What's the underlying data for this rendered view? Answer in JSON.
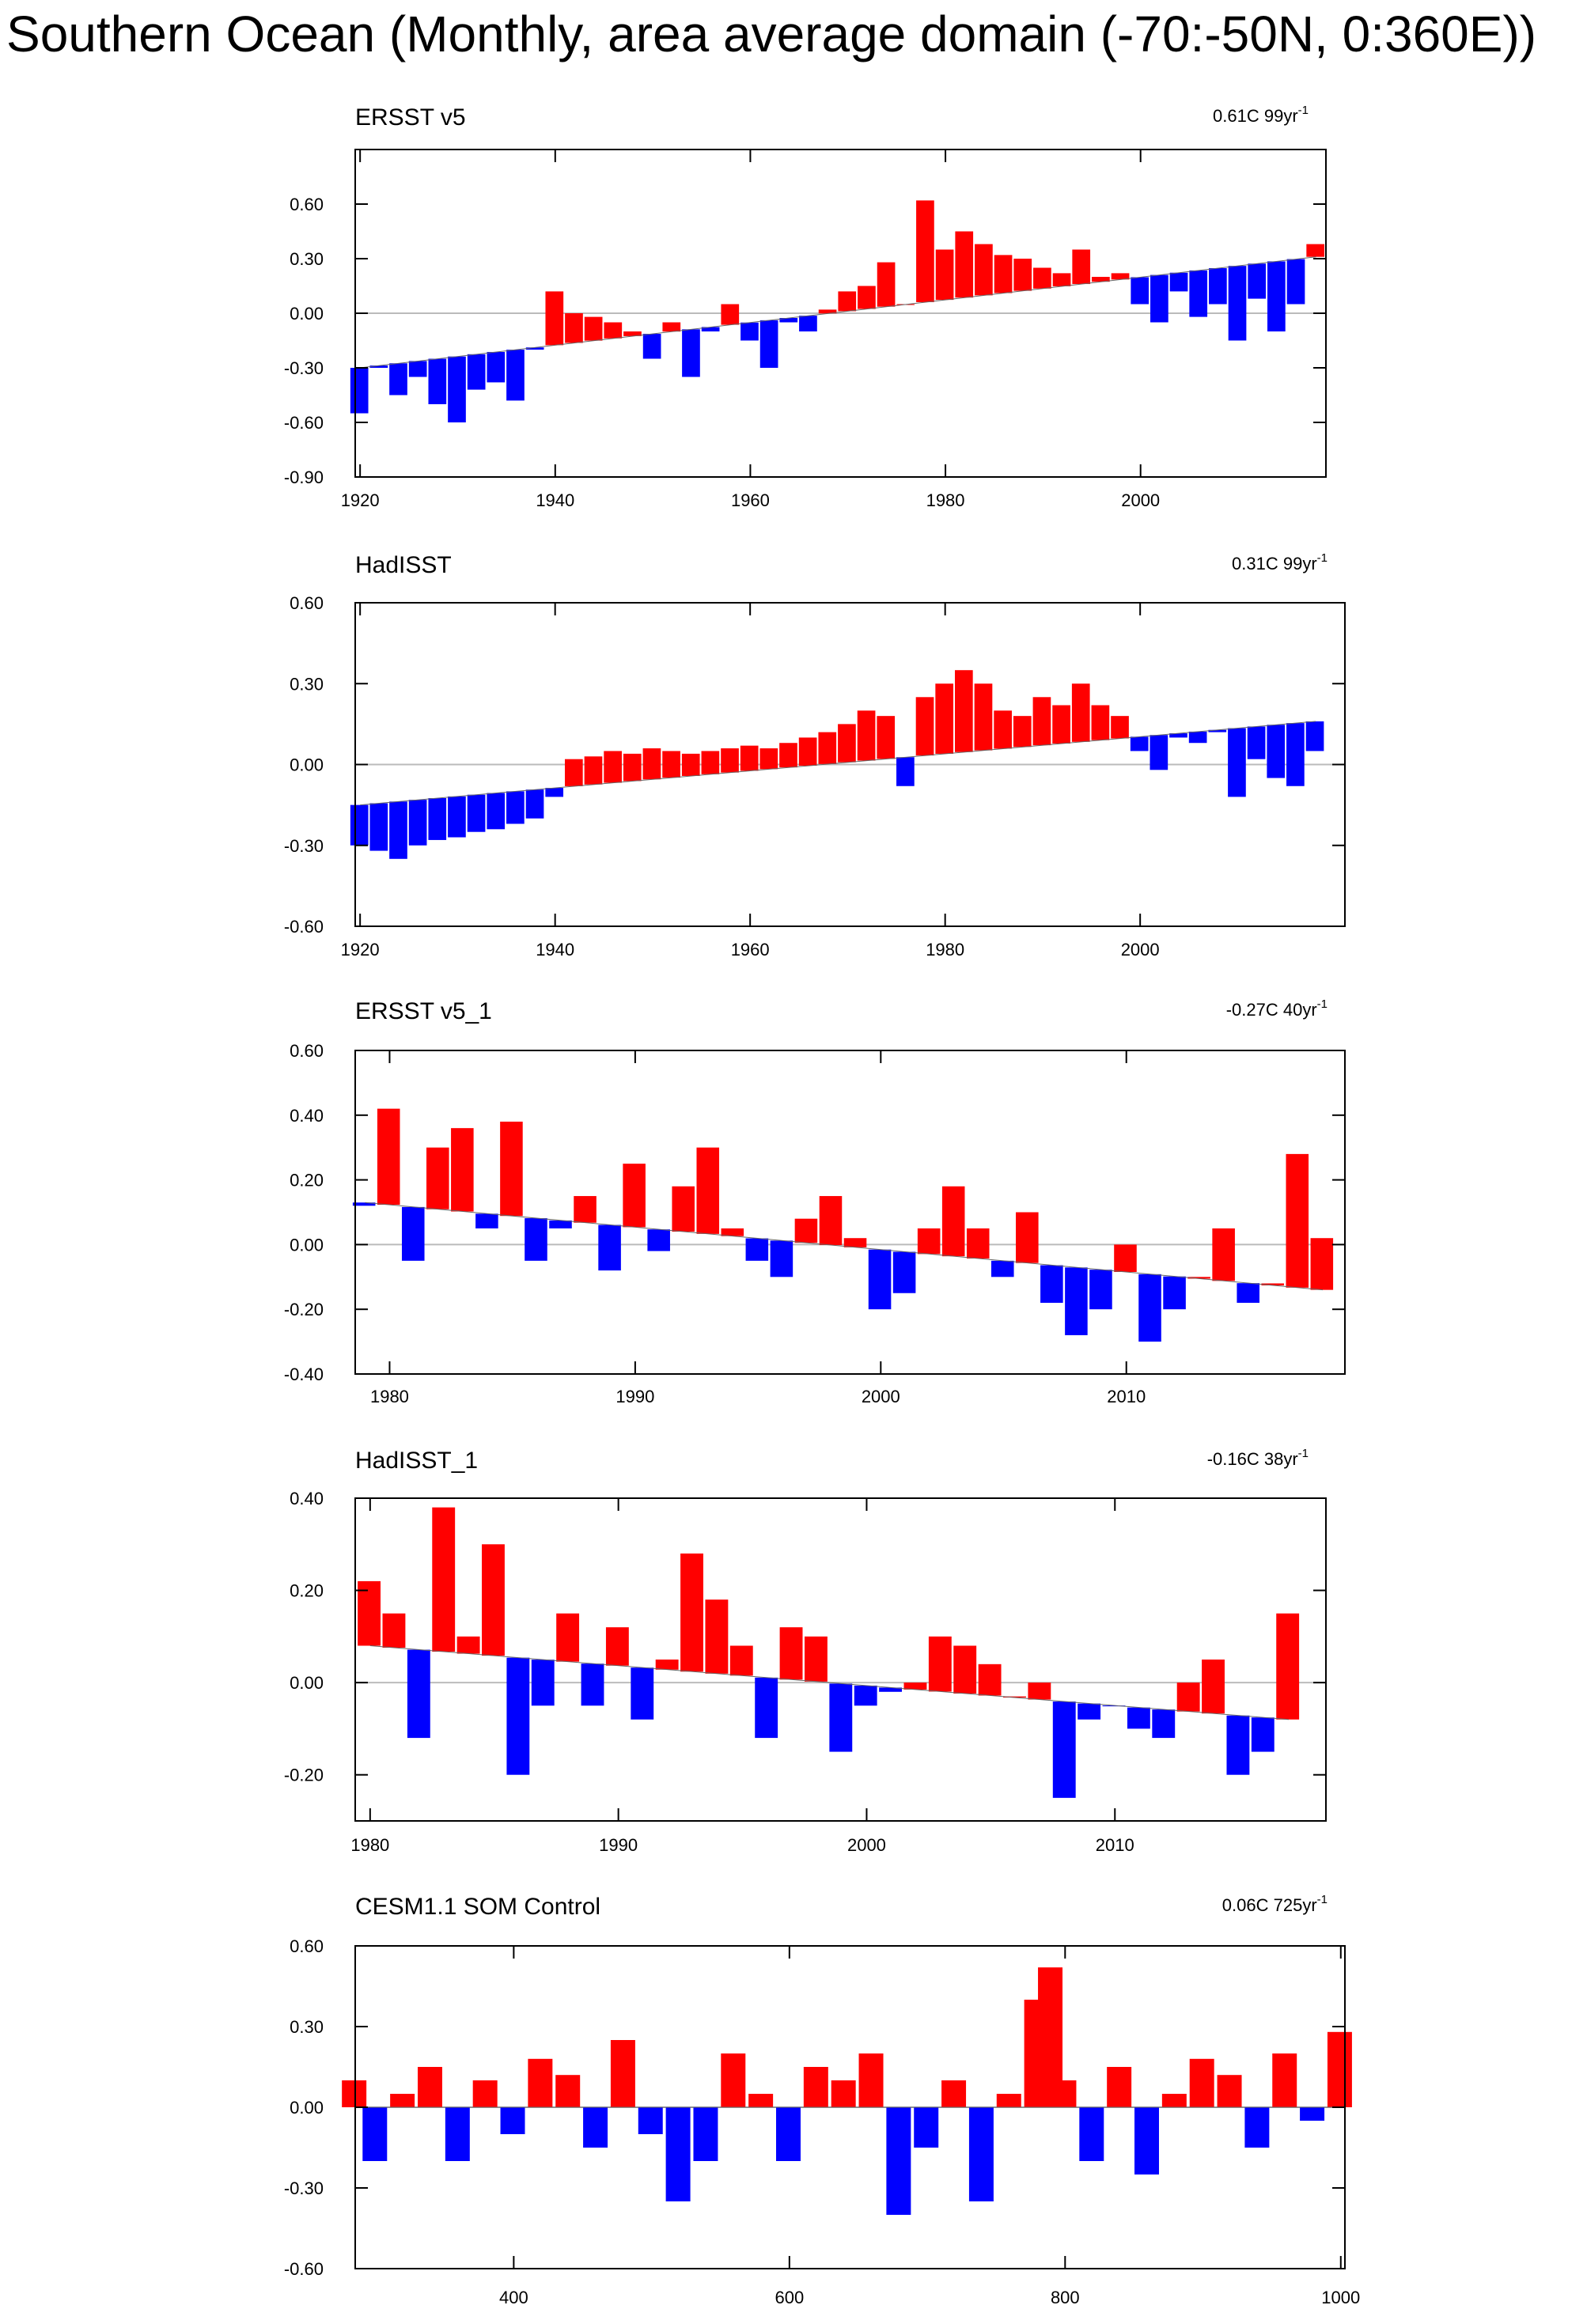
{
  "figure_title": "Southern Ocean (Monthly, area average domain (-70:-50N, 0:360E))",
  "colors": {
    "positive": "#ff0000",
    "negative": "#0000ff",
    "axis": "#000000",
    "zero_line": "#bbbbbb"
  },
  "chart_data": [
    {
      "type": "area",
      "title": "ERSST v5",
      "trend_label": "0.61C 99yr",
      "trend_superscript": "-1",
      "x": [
        1920,
        1922,
        1924,
        1926,
        1928,
        1930,
        1932,
        1934,
        1936,
        1938,
        1940,
        1942,
        1944,
        1946,
        1948,
        1950,
        1952,
        1954,
        1956,
        1958,
        1960,
        1962,
        1964,
        1966,
        1968,
        1970,
        1972,
        1974,
        1976,
        1978,
        1980,
        1982,
        1984,
        1986,
        1988,
        1990,
        1992,
        1994,
        1996,
        1998,
        2000,
        2002,
        2004,
        2006,
        2008,
        2010,
        2012,
        2014,
        2016,
        2018
      ],
      "values": [
        -0.55,
        -0.3,
        -0.45,
        -0.35,
        -0.5,
        -0.6,
        -0.42,
        -0.38,
        -0.48,
        -0.2,
        0.12,
        0.0,
        -0.02,
        -0.05,
        -0.1,
        -0.25,
        -0.05,
        -0.35,
        -0.1,
        0.05,
        -0.15,
        -0.3,
        -0.05,
        -0.1,
        0.02,
        0.12,
        0.15,
        0.28,
        0.05,
        0.62,
        0.35,
        0.45,
        0.38,
        0.32,
        0.3,
        0.25,
        0.22,
        0.35,
        0.2,
        0.22,
        0.05,
        -0.05,
        0.12,
        -0.02,
        0.05,
        -0.15,
        0.08,
        -0.1,
        0.05,
        0.38
      ],
      "trend": [
        -0.3,
        0.31
      ],
      "xlim": [
        1919.5,
        2019
      ],
      "ylim": [
        -0.9,
        0.9
      ],
      "xticks": [
        1920,
        1940,
        1960,
        1980,
        2000
      ],
      "xtick_labels": [
        "1920",
        "1940",
        "1960",
        "1980",
        "2000"
      ],
      "yticks": [
        0.6,
        0.3,
        0.0,
        -0.3,
        -0.6,
        -0.9
      ],
      "ytick_labels": [
        "0.60",
        "0.30",
        "0.00",
        "-0.30",
        "-0.60",
        "-0.90"
      ]
    },
    {
      "type": "area",
      "title": "HadISST",
      "trend_label": "0.31C 99yr",
      "trend_superscript": "-1",
      "x": [
        1920,
        1922,
        1924,
        1926,
        1928,
        1930,
        1932,
        1934,
        1936,
        1938,
        1940,
        1942,
        1944,
        1946,
        1948,
        1950,
        1952,
        1954,
        1956,
        1958,
        1960,
        1962,
        1964,
        1966,
        1968,
        1970,
        1972,
        1974,
        1976,
        1978,
        1980,
        1982,
        1984,
        1986,
        1988,
        1990,
        1992,
        1994,
        1996,
        1998,
        2000,
        2002,
        2004,
        2006,
        2008,
        2010,
        2012,
        2014,
        2016,
        2018
      ],
      "values": [
        -0.3,
        -0.32,
        -0.35,
        -0.3,
        -0.28,
        -0.27,
        -0.25,
        -0.24,
        -0.22,
        -0.2,
        -0.12,
        0.02,
        0.03,
        0.05,
        0.04,
        0.06,
        0.05,
        0.04,
        0.05,
        0.06,
        0.07,
        0.06,
        0.08,
        0.1,
        0.12,
        0.15,
        0.2,
        0.18,
        -0.08,
        0.25,
        0.3,
        0.35,
        0.3,
        0.2,
        0.18,
        0.25,
        0.22,
        0.3,
        0.22,
        0.18,
        0.05,
        -0.02,
        0.1,
        0.08,
        0.12,
        -0.12,
        0.02,
        -0.05,
        -0.08,
        0.05
      ],
      "trend": [
        -0.15,
        0.16
      ],
      "xlim": [
        1919.5,
        2021
      ],
      "ylim": [
        -0.6,
        0.6
      ],
      "xticks": [
        1920,
        1940,
        1960,
        1980,
        2000
      ],
      "xtick_labels": [
        "1920",
        "1940",
        "1960",
        "1980",
        "2000"
      ],
      "yticks": [
        0.6,
        0.3,
        0.0,
        -0.3,
        -0.6
      ],
      "ytick_labels": [
        "0.60",
        "0.30",
        "0.00",
        "-0.30",
        "-0.60"
      ]
    },
    {
      "type": "area",
      "title": "ERSST v5_1",
      "trend_label": "-0.27C 40yr",
      "trend_superscript": "-1",
      "x": [
        1979,
        1980,
        1981,
        1982,
        1983,
        1984,
        1985,
        1986,
        1987,
        1988,
        1989,
        1990,
        1991,
        1992,
        1993,
        1994,
        1995,
        1996,
        1997,
        1998,
        1999,
        2000,
        2001,
        2002,
        2003,
        2004,
        2005,
        2006,
        2007,
        2008,
        2009,
        2010,
        2011,
        2012,
        2013,
        2014,
        2015,
        2016,
        2017,
        2018
      ],
      "values": [
        0.12,
        0.42,
        -0.05,
        0.3,
        0.36,
        0.05,
        0.38,
        -0.05,
        0.05,
        0.15,
        -0.08,
        0.25,
        -0.02,
        0.18,
        0.3,
        0.05,
        -0.05,
        -0.1,
        0.08,
        0.15,
        0.02,
        -0.2,
        -0.15,
        0.05,
        0.18,
        0.05,
        -0.1,
        0.1,
        -0.18,
        -0.28,
        -0.2,
        0.0,
        -0.3,
        -0.2,
        -0.1,
        0.05,
        -0.18,
        -0.12,
        0.28,
        0.02
      ],
      "trend": [
        0.13,
        -0.14
      ],
      "xlim": [
        1978.6,
        2018.9
      ],
      "ylim": [
        -0.4,
        0.6
      ],
      "xticks": [
        1980,
        1990,
        2000,
        2010
      ],
      "xtick_labels": [
        "1980",
        "1990",
        "2000",
        "2010"
      ],
      "yticks": [
        0.6,
        0.4,
        0.2,
        0.0,
        -0.2,
        -0.4
      ],
      "ytick_labels": [
        "0.60",
        "0.40",
        "0.20",
        "0.00",
        "-0.20",
        "-0.40"
      ]
    },
    {
      "type": "area",
      "title": "HadISST_1",
      "trend_label": "-0.16C 38yr",
      "trend_superscript": "-1",
      "x": [
        1980,
        1981,
        1982,
        1983,
        1984,
        1985,
        1986,
        1987,
        1988,
        1989,
        1990,
        1991,
        1992,
        1993,
        1994,
        1995,
        1996,
        1997,
        1998,
        1999,
        2000,
        2001,
        2002,
        2003,
        2004,
        2005,
        2006,
        2007,
        2008,
        2009,
        2010,
        2011,
        2012,
        2013,
        2014,
        2015,
        2016,
        2017
      ],
      "values": [
        0.22,
        0.15,
        -0.12,
        0.38,
        0.1,
        0.3,
        -0.2,
        -0.05,
        0.15,
        -0.05,
        0.12,
        -0.08,
        0.05,
        0.28,
        0.18,
        0.08,
        -0.12,
        0.12,
        0.1,
        -0.15,
        -0.05,
        -0.02,
        0.0,
        0.1,
        0.08,
        0.04,
        -0.03,
        0.0,
        -0.25,
        -0.08,
        -0.05,
        -0.1,
        -0.12,
        0.0,
        0.05,
        -0.2,
        -0.15,
        0.15
      ],
      "trend": [
        0.08,
        -0.08
      ],
      "xlim": [
        1979.4,
        2018.5
      ],
      "ylim": [
        -0.3,
        0.4
      ],
      "xticks": [
        1980,
        1990,
        2000,
        2010
      ],
      "xtick_labels": [
        "1980",
        "1990",
        "2000",
        "2010"
      ],
      "yticks": [
        0.4,
        0.2,
        0.0,
        -0.2
      ],
      "ytick_labels": [
        "0.40",
        "0.20",
        "0.00",
        "-0.20"
      ]
    },
    {
      "type": "area",
      "title": "CESM1.1 SOM Control",
      "trend_label": "0.06C 725yr",
      "trend_superscript": "-1",
      "x": [
        285,
        300,
        320,
        340,
        360,
        380,
        400,
        420,
        440,
        460,
        480,
        500,
        520,
        540,
        560,
        580,
        600,
        620,
        640,
        660,
        680,
        700,
        720,
        740,
        760,
        780,
        790,
        800,
        820,
        840,
        860,
        880,
        900,
        920,
        940,
        960,
        980,
        1000
      ],
      "values": [
        0.1,
        -0.2,
        0.05,
        0.15,
        -0.2,
        0.1,
        -0.1,
        0.18,
        0.12,
        -0.15,
        0.25,
        -0.1,
        -0.35,
        -0.2,
        0.2,
        0.05,
        -0.2,
        0.15,
        0.1,
        0.2,
        -0.4,
        -0.15,
        0.1,
        -0.35,
        0.05,
        0.4,
        0.52,
        0.1,
        -0.2,
        0.15,
        -0.25,
        0.05,
        0.18,
        0.12,
        -0.15,
        0.2,
        -0.05,
        0.28
      ],
      "trend": [
        0.0,
        0.0
      ],
      "xlim": [
        285,
        1003
      ],
      "ylim": [
        -0.6,
        0.6
      ],
      "xticks": [
        400,
        600,
        800,
        1000
      ],
      "xtick_labels": [
        "400",
        "600",
        "800",
        "1000"
      ],
      "yticks": [
        0.6,
        0.3,
        0.0,
        -0.3,
        -0.6
      ],
      "ytick_labels": [
        "0.60",
        "0.30",
        "0.00",
        "-0.30",
        "-0.60"
      ]
    }
  ]
}
